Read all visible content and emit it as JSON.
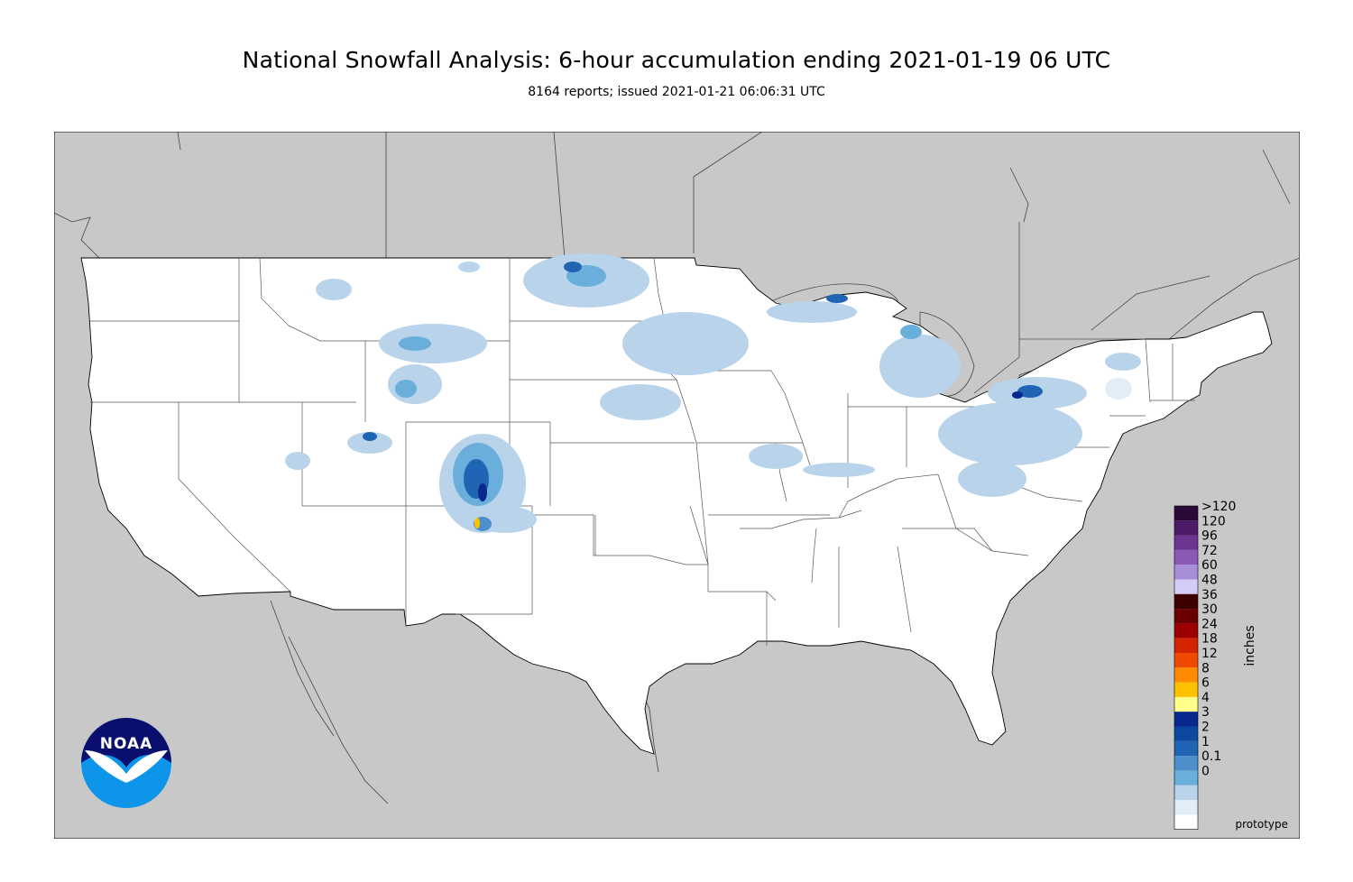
{
  "title": "National Snowfall Analysis: 6-hour accumulation ending 2021-01-19 06 UTC",
  "subtitle": "8164 reports; issued 2021-01-21 06:06:31 UTC",
  "legend": {
    "units": "inches",
    "bins": [
      {
        "label": ">120",
        "color": "#2b0a38"
      },
      {
        "label": "120",
        "color": "#4c1a66"
      },
      {
        "label": "96",
        "color": "#6c3591"
      },
      {
        "label": "72",
        "color": "#8a5ab6"
      },
      {
        "label": "60",
        "color": "#a88ed8"
      },
      {
        "label": "48",
        "color": "#d2ccf7"
      },
      {
        "label": "36",
        "color": "#3d0000"
      },
      {
        "label": "30",
        "color": "#6b0000"
      },
      {
        "label": "24",
        "color": "#9d0000"
      },
      {
        "label": "18",
        "color": "#d22400"
      },
      {
        "label": "12",
        "color": "#ef4a00"
      },
      {
        "label": "8",
        "color": "#ff8b00"
      },
      {
        "label": "6",
        "color": "#ffc200"
      },
      {
        "label": "4",
        "color": "#ffff8c"
      },
      {
        "label": "3",
        "color": "#08288d"
      },
      {
        "label": "2",
        "color": "#0d48a0"
      },
      {
        "label": "1",
        "color": "#2065b3"
      },
      {
        "label": "0.1",
        "color": "#4d8fcc"
      },
      {
        "label": "0",
        "color": "#6aaedb"
      }
    ],
    "extra_colors": [
      "#b9d4ea",
      "#e1edf7",
      "#ffffff"
    ]
  },
  "logo": {
    "text": "NOAA"
  },
  "footnote": "prototype",
  "colors": {
    "land_outside": "#c8c8c8",
    "water": "#c8c8c8",
    "conus": "#ffffff",
    "border": "#505050"
  }
}
